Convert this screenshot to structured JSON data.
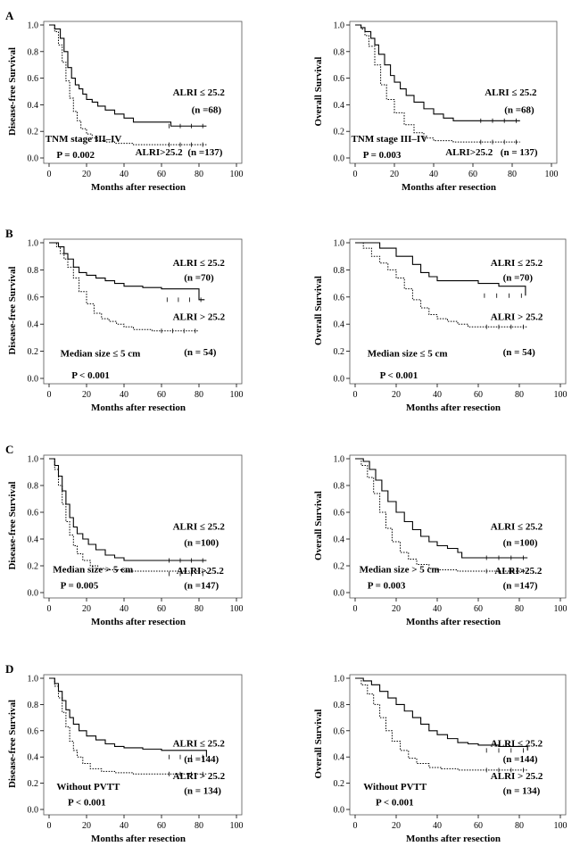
{
  "chart_data": [
    {
      "type": "line",
      "panel": "A",
      "ylabel": "Disease-free  Survival",
      "xlabel": "Months after resection",
      "xlim": [
        0,
        100
      ],
      "ylim": [
        0,
        1
      ],
      "x_ticks": [
        "0",
        "20",
        "40",
        "60",
        "80",
        "100"
      ],
      "y_ticks": [
        "0.0",
        "0.2",
        "0.4",
        "0.6",
        "0.8",
        "1.0"
      ],
      "annotations": {
        "subgroup": "TNM stage III–IV",
        "p_value": "P = 0.002",
        "s1_label": "ALRI ≤ 25.2",
        "s1_n": "(n =68)",
        "s2_label": "ALRI>25.2",
        "s2_n": "(n =137)"
      },
      "series": [
        {
          "name": "ALRI ≤ 25.2",
          "style": "solid",
          "x": [
            0,
            3,
            6,
            8,
            10,
            12,
            14,
            16,
            18,
            20,
            23,
            26,
            30,
            35,
            40,
            45,
            58,
            65,
            84
          ],
          "y": [
            1,
            0.97,
            0.9,
            0.8,
            0.68,
            0.6,
            0.55,
            0.52,
            0.48,
            0.44,
            0.42,
            0.39,
            0.36,
            0.33,
            0.3,
            0.27,
            0.27,
            0.24,
            0.24
          ]
        },
        {
          "name": "ALRI>25.2",
          "style": "dotted",
          "x": [
            0,
            3,
            5,
            7,
            9,
            11,
            13,
            15,
            17,
            20,
            23,
            26,
            30,
            35,
            45,
            84
          ],
          "y": [
            1,
            0.95,
            0.85,
            0.72,
            0.58,
            0.45,
            0.35,
            0.28,
            0.22,
            0.18,
            0.15,
            0.13,
            0.12,
            0.11,
            0.1,
            0.1
          ]
        }
      ]
    },
    {
      "type": "line",
      "panel": "",
      "ylabel": "Overall Survival",
      "xlabel": "Months after resection",
      "xlim": [
        0,
        100
      ],
      "ylim": [
        0,
        1
      ],
      "x_ticks": [
        "0",
        "20",
        "40",
        "60",
        "80",
        "100"
      ],
      "y_ticks": [
        "0.0",
        "0.2",
        "0.4",
        "0.6",
        "0.8",
        "1.0"
      ],
      "annotations": {
        "subgroup": "TNM stage III–IV",
        "p_value": "P = 0.003",
        "s1_label": "ALRI ≤ 25.2",
        "s1_n": "(n =68)",
        "s2_label": "ALRI>25.2",
        "s2_n": "(n = 137)"
      },
      "series": [
        {
          "name": "ALRI ≤ 25.2",
          "style": "solid",
          "x": [
            0,
            3,
            5,
            8,
            10,
            12,
            15,
            18,
            20,
            23,
            26,
            30,
            35,
            40,
            45,
            50,
            60,
            84
          ],
          "y": [
            1,
            0.98,
            0.95,
            0.9,
            0.85,
            0.78,
            0.7,
            0.62,
            0.57,
            0.52,
            0.47,
            0.42,
            0.37,
            0.33,
            0.3,
            0.28,
            0.28,
            0.28
          ]
        },
        {
          "name": "ALRI>25.2",
          "style": "dotted",
          "x": [
            0,
            3,
            5,
            7,
            10,
            13,
            16,
            20,
            25,
            30,
            35,
            40,
            50,
            84
          ],
          "y": [
            1,
            0.97,
            0.92,
            0.84,
            0.7,
            0.55,
            0.44,
            0.34,
            0.25,
            0.19,
            0.15,
            0.13,
            0.12,
            0.12
          ]
        }
      ]
    },
    {
      "type": "line",
      "panel": "B",
      "ylabel": "Disease-free  Survival",
      "xlabel": "Months after resection",
      "xlim": [
        0,
        100
      ],
      "ylim": [
        0,
        1
      ],
      "x_ticks": [
        "0",
        "20",
        "40",
        "60",
        "80",
        "100"
      ],
      "y_ticks": [
        "0.0",
        "0.2",
        "0.4",
        "0.6",
        "0.8",
        "1.0"
      ],
      "annotations": {
        "subgroup": "Median size ≤ 5 cm",
        "p_value": "P < 0.001",
        "s1_label": "ALRI ≤ 25.2",
        "s1_n": "(n =70)",
        "s2_label": "ALRI > 25.2",
        "s2_n": "(n = 54)"
      },
      "series": [
        {
          "name": "ALRI ≤ 25.2",
          "style": "solid",
          "x": [
            0,
            5,
            8,
            10,
            13,
            16,
            20,
            25,
            30,
            35,
            40,
            50,
            60,
            78,
            80,
            83
          ],
          "y": [
            1,
            0.97,
            0.92,
            0.88,
            0.82,
            0.78,
            0.76,
            0.74,
            0.72,
            0.7,
            0.68,
            0.67,
            0.66,
            0.66,
            0.58,
            0.58
          ]
        },
        {
          "name": "ALRI > 25.2",
          "style": "dotted",
          "x": [
            0,
            4,
            6,
            8,
            10,
            13,
            16,
            20,
            24,
            28,
            32,
            36,
            40,
            45,
            55,
            80
          ],
          "y": [
            1,
            0.97,
            0.92,
            0.88,
            0.82,
            0.74,
            0.64,
            0.55,
            0.48,
            0.44,
            0.42,
            0.4,
            0.38,
            0.36,
            0.35,
            0.35
          ]
        }
      ]
    },
    {
      "type": "line",
      "panel": "",
      "ylabel": "Overall Survival",
      "xlabel": "Months after resection",
      "xlim": [
        0,
        100
      ],
      "ylim": [
        0,
        1
      ],
      "x_ticks": [
        "0",
        "20",
        "40",
        "60",
        "80",
        "100"
      ],
      "y_ticks": [
        "0.0",
        "0.2",
        "0.4",
        "0.6",
        "0.8",
        "1.0"
      ],
      "annotations": {
        "subgroup": "Median size ≤ 5 cm",
        "p_value": "P < 0.001",
        "s1_label": "ALRI ≤ 25.2",
        "s1_n": "(n =70)",
        "s2_label": "ALRI > 25.2",
        "s2_n": "(n = 54)"
      },
      "series": [
        {
          "name": "ALRI ≤ 25.2",
          "style": "solid",
          "x": [
            0,
            8,
            12,
            20,
            28,
            32,
            36,
            40,
            50,
            60,
            70,
            80,
            83,
            83
          ],
          "y": [
            1,
            1,
            0.96,
            0.9,
            0.84,
            0.78,
            0.75,
            0.72,
            0.72,
            0.7,
            0.68,
            0.68,
            0.68,
            0.61
          ]
        },
        {
          "name": "ALRI > 25.2",
          "style": "dotted",
          "x": [
            0,
            4,
            8,
            12,
            16,
            20,
            24,
            28,
            32,
            36,
            40,
            45,
            50,
            55,
            84
          ],
          "y": [
            1,
            0.96,
            0.9,
            0.85,
            0.8,
            0.74,
            0.66,
            0.58,
            0.52,
            0.47,
            0.44,
            0.42,
            0.4,
            0.38,
            0.38
          ]
        }
      ]
    },
    {
      "type": "line",
      "panel": "C",
      "ylabel": "Disease-free  Survival",
      "xlabel": "Months after resection",
      "xlim": [
        0,
        100
      ],
      "ylim": [
        0,
        1
      ],
      "x_ticks": [
        "0",
        "20",
        "40",
        "60",
        "80",
        "100"
      ],
      "y_ticks": [
        "0.0",
        "0.2",
        "0.4",
        "0.6",
        "0.8",
        "1.0"
      ],
      "annotations": {
        "subgroup": "Median size > 5 cm",
        "p_value": "P = 0.005",
        "s1_label": "ALRI ≤ 25.2",
        "s1_n": "(n =100)",
        "s2_label": "ALRI>25.2",
        "s2_n": "(n =147)"
      },
      "series": [
        {
          "name": "ALRI ≤ 25.2",
          "style": "solid",
          "x": [
            0,
            3,
            5,
            7,
            9,
            11,
            13,
            15,
            18,
            21,
            25,
            30,
            35,
            40,
            84
          ],
          "y": [
            1,
            0.95,
            0.87,
            0.76,
            0.66,
            0.56,
            0.49,
            0.44,
            0.4,
            0.36,
            0.32,
            0.28,
            0.26,
            0.24,
            0.24
          ]
        },
        {
          "name": "ALRI>25.2",
          "style": "dotted",
          "x": [
            0,
            3,
            5,
            7,
            9,
            11,
            13,
            15,
            18,
            22,
            26,
            30,
            40,
            84
          ],
          "y": [
            1,
            0.92,
            0.8,
            0.66,
            0.53,
            0.43,
            0.35,
            0.29,
            0.24,
            0.2,
            0.18,
            0.17,
            0.16,
            0.14
          ]
        }
      ]
    },
    {
      "type": "line",
      "panel": "",
      "ylabel": "Overall Survival",
      "xlabel": "Months after resection",
      "xlim": [
        0,
        100
      ],
      "ylim": [
        0,
        1
      ],
      "x_ticks": [
        "0",
        "20",
        "40",
        "60",
        "80",
        "100"
      ],
      "y_ticks": [
        "0.0",
        "0.2",
        "0.4",
        "0.6",
        "0.8",
        "1.0"
      ],
      "annotations": {
        "subgroup": "Median size > 5 cm",
        "p_value": "P = 0.003",
        "s1_label": "ALRI ≤ 25.2",
        "s1_n": "(n =100)",
        "s2_label": "ALRI>25.2",
        "s2_n": "(n =147)"
      },
      "series": [
        {
          "name": "ALRI ≤ 25.2",
          "style": "solid",
          "x": [
            0,
            4,
            7,
            10,
            13,
            16,
            20,
            24,
            28,
            32,
            36,
            40,
            45,
            50,
            52,
            84
          ],
          "y": [
            1,
            0.98,
            0.92,
            0.84,
            0.76,
            0.68,
            0.6,
            0.53,
            0.47,
            0.42,
            0.38,
            0.35,
            0.33,
            0.3,
            0.26,
            0.26
          ]
        },
        {
          "name": "ALRI>25.2",
          "style": "dotted",
          "x": [
            0,
            3,
            6,
            9,
            12,
            15,
            18,
            22,
            26,
            30,
            36,
            40,
            50,
            84
          ],
          "y": [
            1,
            0.95,
            0.86,
            0.74,
            0.6,
            0.48,
            0.38,
            0.3,
            0.25,
            0.21,
            0.18,
            0.17,
            0.16,
            0.16
          ]
        }
      ]
    },
    {
      "type": "line",
      "panel": "D",
      "ylabel": "Disease-free  Survival",
      "xlabel": "Months after resection",
      "xlim": [
        0,
        100
      ],
      "ylim": [
        0,
        1
      ],
      "x_ticks": [
        "0",
        "20",
        "40",
        "60",
        "80",
        "100"
      ],
      "y_ticks": [
        "0.0",
        "0.2",
        "0.4",
        "0.6",
        "0.8",
        "1.0"
      ],
      "annotations": {
        "subgroup": "Without PVTT",
        "p_value": "P < 0.001",
        "s1_label": "ALRI ≤ 25.2",
        "s1_n": "(n =144)",
        "s2_label": "ALRI > 25.2",
        "s2_n": "(n = 134)"
      },
      "series": [
        {
          "name": "ALRI ≤ 25.2",
          "style": "solid",
          "x": [
            0,
            3,
            5,
            7,
            9,
            11,
            13,
            16,
            20,
            25,
            30,
            35,
            40,
            50,
            60,
            80,
            84
          ],
          "y": [
            1,
            0.96,
            0.9,
            0.83,
            0.76,
            0.7,
            0.65,
            0.6,
            0.56,
            0.53,
            0.5,
            0.48,
            0.47,
            0.46,
            0.45,
            0.45,
            0.4
          ]
        },
        {
          "name": "ALRI > 25.2",
          "style": "dotted",
          "x": [
            0,
            3,
            5,
            7,
            9,
            11,
            13,
            15,
            18,
            22,
            28,
            35,
            45,
            84
          ],
          "y": [
            1,
            0.94,
            0.85,
            0.74,
            0.63,
            0.52,
            0.45,
            0.4,
            0.35,
            0.31,
            0.29,
            0.28,
            0.27,
            0.27
          ]
        }
      ]
    },
    {
      "type": "line",
      "panel": "",
      "ylabel": "Overall Survival",
      "xlabel": "Months after resection",
      "xlim": [
        0,
        100
      ],
      "ylim": [
        0,
        1
      ],
      "x_ticks": [
        "0",
        "20",
        "40",
        "60",
        "80",
        "100"
      ],
      "y_ticks": [
        "0.0",
        "0.2",
        "0.4",
        "0.6",
        "0.8",
        "1.0"
      ],
      "annotations": {
        "subgroup": "Without PVTT",
        "p_value": "P < 0.001",
        "s1_label": "ALRI ≤ 25.2",
        "s1_n": "(n =144)",
        "s2_label": "ALRI > 25.2",
        "s2_n": "(n = 134)"
      },
      "series": [
        {
          "name": "ALRI ≤ 25.2",
          "style": "solid",
          "x": [
            0,
            4,
            8,
            12,
            16,
            20,
            24,
            28,
            32,
            36,
            40,
            45,
            50,
            55,
            60,
            70,
            84
          ],
          "y": [
            1,
            0.98,
            0.95,
            0.9,
            0.85,
            0.8,
            0.75,
            0.7,
            0.65,
            0.6,
            0.57,
            0.54,
            0.51,
            0.5,
            0.49,
            0.48,
            0.45
          ]
        },
        {
          "name": "ALRI > 25.2",
          "style": "dotted",
          "x": [
            0,
            3,
            6,
            9,
            12,
            15,
            18,
            22,
            26,
            30,
            36,
            42,
            50,
            84
          ],
          "y": [
            1,
            0.95,
            0.88,
            0.8,
            0.7,
            0.6,
            0.52,
            0.45,
            0.39,
            0.35,
            0.32,
            0.31,
            0.3,
            0.3
          ]
        }
      ]
    }
  ]
}
